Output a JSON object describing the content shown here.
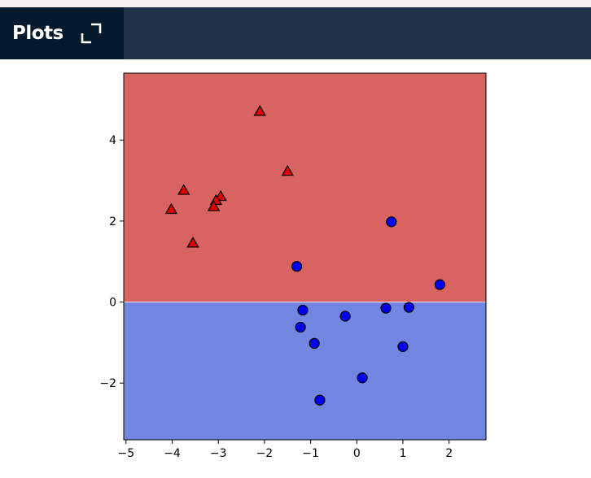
{
  "panel": {
    "title": "Plots",
    "expand_icon": "expand-icon"
  },
  "colors": {
    "top_strip": "#f6f1ee",
    "header_bg": "#213147",
    "tab_bg": "#05192d",
    "region_top": "#d96360",
    "region_bottom": "#7086e0",
    "triangle_fill": "#e00000",
    "circle_fill": "#0000f0"
  },
  "chart_data": {
    "type": "scatter",
    "title": "",
    "xlabel": "",
    "ylabel": "",
    "xlim": [
      -5.05,
      2.8
    ],
    "ylim": [
      -3.4,
      5.65
    ],
    "xticks": [
      -5,
      -4,
      -3,
      -2,
      -1,
      0,
      1,
      2
    ],
    "yticks": [
      -2,
      0,
      2,
      4
    ],
    "decision_boundary_y": 0,
    "regions": [
      {
        "name": "upper",
        "color": "#d96360"
      },
      {
        "name": "lower",
        "color": "#7086e0"
      }
    ],
    "series": [
      {
        "marker": "triangle",
        "color": "#e00000",
        "points": [
          [
            -2.1,
            4.7
          ],
          [
            -1.5,
            3.22
          ],
          [
            -3.75,
            2.75
          ],
          [
            -2.95,
            2.6
          ],
          [
            -3.05,
            2.5
          ],
          [
            -3.1,
            2.35
          ],
          [
            -4.02,
            2.28
          ],
          [
            -3.55,
            1.45
          ]
        ]
      },
      {
        "marker": "circle",
        "color": "#0000f0",
        "points": [
          [
            0.75,
            1.98
          ],
          [
            -1.3,
            0.88
          ],
          [
            1.8,
            0.43
          ],
          [
            -1.17,
            -0.2
          ],
          [
            0.63,
            -0.15
          ],
          [
            1.13,
            -0.13
          ],
          [
            -0.25,
            -0.35
          ],
          [
            -1.22,
            -0.62
          ],
          [
            -0.92,
            -1.02
          ],
          [
            1.0,
            -1.1
          ],
          [
            0.12,
            -1.87
          ],
          [
            -0.8,
            -2.42
          ]
        ]
      }
    ],
    "grid": false,
    "legend": false
  }
}
